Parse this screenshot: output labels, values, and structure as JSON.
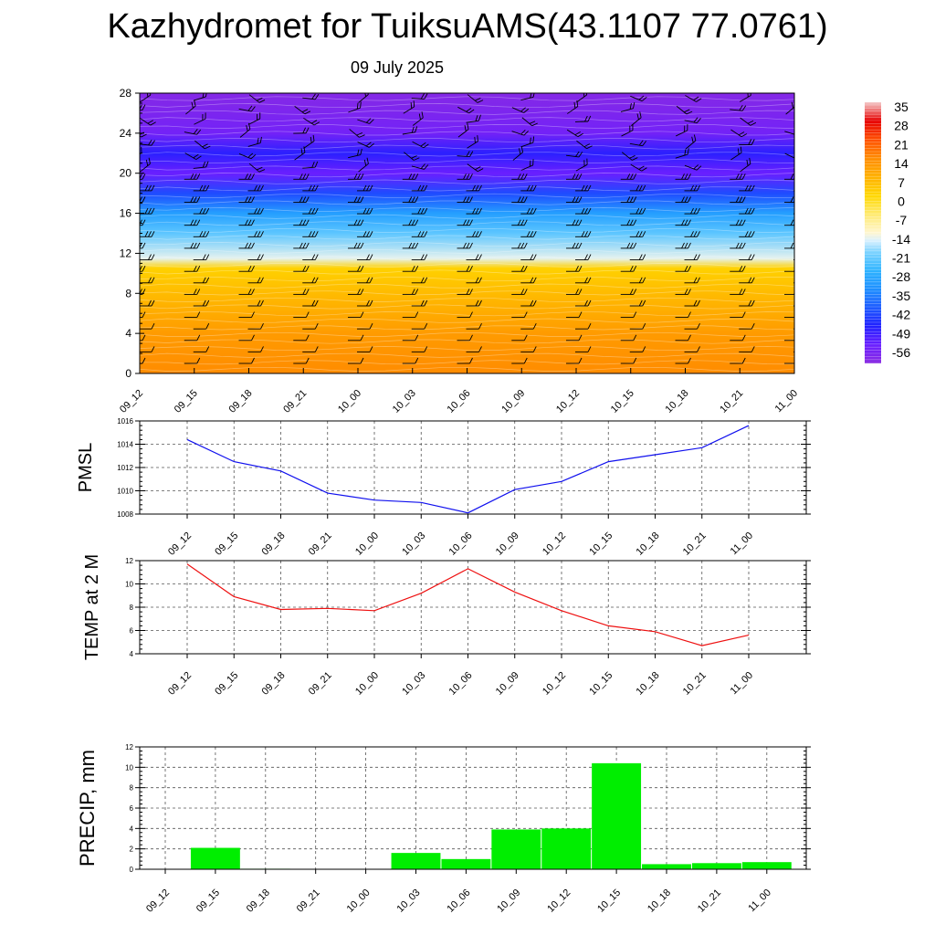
{
  "title": "Kazhydromet for TuiksuAMS(43.1107 77.0761)",
  "subtitle": "09 July 2025",
  "chart_data": [
    {
      "type": "heatmap",
      "categories": [
        "09_12",
        "09_15",
        "09_18",
        "09_21",
        "10_00",
        "10_03",
        "10_06",
        "10_09",
        "10_12",
        "10_15",
        "10_18",
        "10_21",
        "11_00"
      ],
      "ylim": [
        0,
        28
      ],
      "yticks": [
        0,
        4,
        8,
        12,
        16,
        20,
        24,
        28
      ],
      "colorbar_labels": [
        "35",
        "28",
        "21",
        "14",
        "7",
        "0",
        "-7",
        "-14",
        "-21",
        "-28",
        "-35",
        "-42",
        "-49",
        "-56"
      ],
      "colorbar_range": [
        -63,
        35
      ],
      "temperature_profile": [
        {
          "y": 0,
          "value": 14
        },
        {
          "y": 4,
          "value": 11
        },
        {
          "y": 8,
          "value": 5
        },
        {
          "y": 10.5,
          "value": 1
        },
        {
          "y": 11.5,
          "value": -16
        },
        {
          "y": 14,
          "value": -24
        },
        {
          "y": 16,
          "value": -32
        },
        {
          "y": 18,
          "value": -44
        },
        {
          "y": 20,
          "value": -56
        },
        {
          "y": 22,
          "value": -50
        },
        {
          "y": 24,
          "value": -58
        },
        {
          "y": 28,
          "value": -62
        }
      ],
      "wind_barbs": true,
      "colors": {
        "warm": "#ff7f00",
        "cold": "#7b2ff7"
      }
    },
    {
      "type": "line",
      "ylabel": "PMSL",
      "categories": [
        "09_12",
        "09_15",
        "09_18",
        "09_21",
        "10_00",
        "10_03",
        "10_06",
        "10_09",
        "10_12",
        "10_15",
        "10_18",
        "10_21",
        "11_00"
      ],
      "values": [
        1014.4,
        1012.5,
        1011.7,
        1009.8,
        1009.2,
        1009.0,
        1008.1,
        1010.1,
        1010.8,
        1012.5,
        1013.1,
        1013.7,
        1015.6
      ],
      "ylim": [
        1008,
        1016
      ],
      "yticks": [
        "1008",
        "1010",
        "1012",
        "1014",
        "1016"
      ],
      "color": "#1010ee",
      "grid": true
    },
    {
      "type": "line",
      "ylabel": "TEMP at 2 M",
      "categories": [
        "09_12",
        "09_15",
        "09_18",
        "09_21",
        "10_00",
        "10_03",
        "10_06",
        "10_09",
        "10_12",
        "10_15",
        "10_18",
        "10_21",
        "11_00"
      ],
      "values": [
        11.7,
        8.9,
        7.8,
        7.9,
        7.7,
        9.2,
        11.3,
        9.3,
        7.7,
        6.4,
        5.9,
        4.7,
        5.6
      ],
      "ylim": [
        4,
        12
      ],
      "yticks": [
        "4",
        "6",
        "8",
        "10",
        "12"
      ],
      "color": "#ee1010",
      "grid": true
    },
    {
      "type": "bar",
      "ylabel": "PRECIP, mm",
      "categories": [
        "09_12",
        "09_15",
        "09_18",
        "09_21",
        "10_00",
        "10_03",
        "10_06",
        "10_09",
        "10_12",
        "10_15",
        "10_18",
        "10_21",
        "11_00"
      ],
      "values": [
        0,
        2.1,
        0.05,
        0,
        0,
        1.6,
        1.0,
        3.9,
        4.0,
        10.4,
        0.5,
        0.6,
        0.7
      ],
      "ylim": [
        0,
        12
      ],
      "yticks": [
        "0",
        "2",
        "4",
        "6",
        "8",
        "10",
        "12"
      ],
      "color": "#00ee00",
      "grid": true
    }
  ]
}
